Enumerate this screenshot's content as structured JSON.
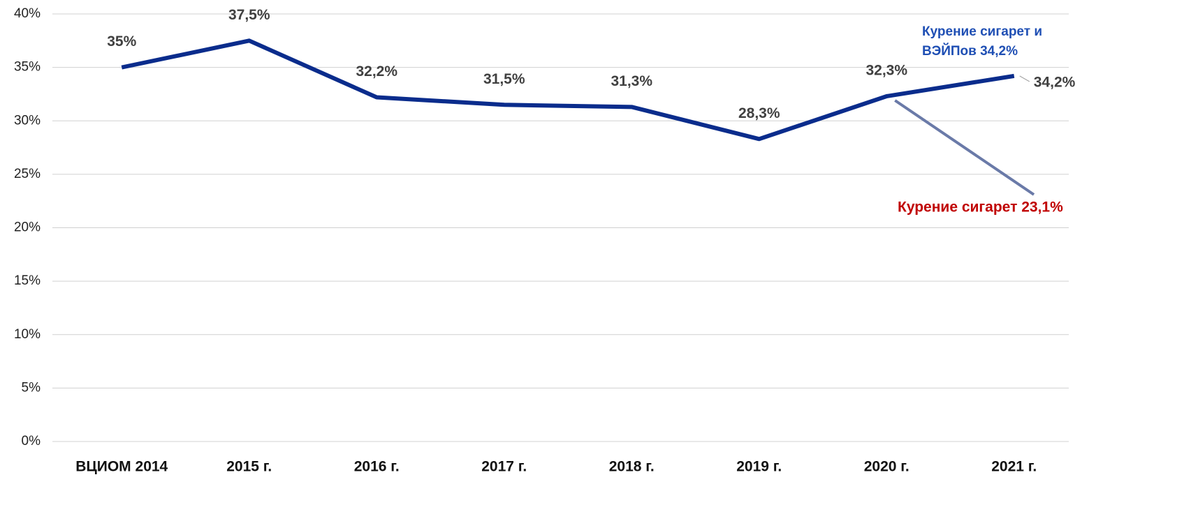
{
  "chart_data": {
    "type": "line",
    "categories": [
      "ВЦИОМ 2014",
      "2015 г.",
      "2016 г.",
      "2017 г.",
      "2018 г.",
      "2019 г.",
      "2020 г.",
      "2021 г."
    ],
    "series": [
      {
        "color": "#0a2c8c",
        "values": [
          35,
          37.5,
          32.2,
          31.5,
          31.3,
          28.3,
          32.3,
          34.2
        ],
        "value_labels": [
          "35%",
          "37,5%",
          "32,2%",
          "31,5%",
          "31,3%",
          "28,3%",
          "32,3%",
          "34,2%"
        ]
      }
    ],
    "ylim": [
      0,
      40
    ],
    "yticks": [
      {
        "value": 0,
        "label": "0%"
      },
      {
        "value": 5,
        "label": "5%"
      },
      {
        "value": 10,
        "label": "10%"
      },
      {
        "value": 15,
        "label": "15%"
      },
      {
        "value": 20,
        "label": "20%"
      },
      {
        "value": 25,
        "label": "25%"
      },
      {
        "value": 30,
        "label": "30%"
      },
      {
        "value": 35,
        "label": "35%"
      },
      {
        "value": 40,
        "label": "40%"
      }
    ],
    "grid": true,
    "annotations": [
      {
        "lines": [
          "Курение сигарет и",
          "ВЭЙПов  34,2%"
        ],
        "color": "#1f4fb4"
      },
      {
        "text": "Курение сигарет 23,1%",
        "value": 23.1,
        "color": "#c00000"
      }
    ]
  }
}
